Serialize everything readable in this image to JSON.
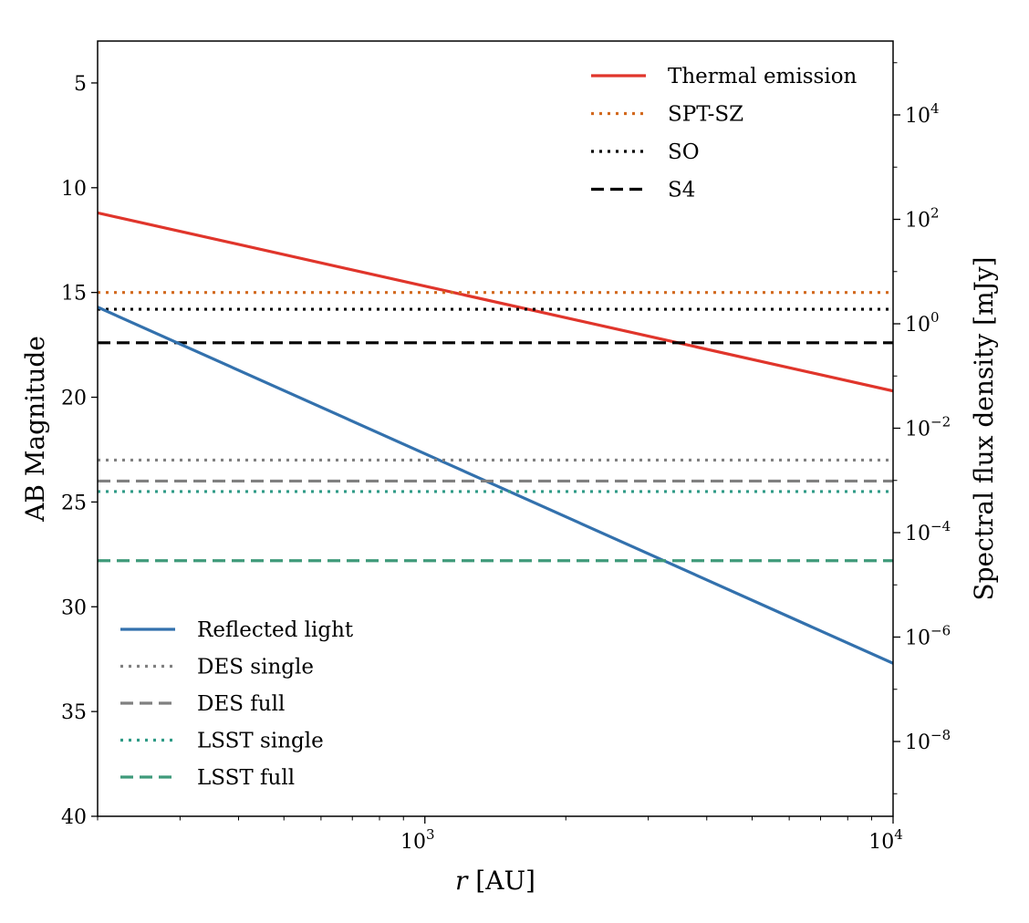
{
  "chart_data": {
    "type": "line",
    "xlabel": "r [AU]",
    "xlabel_var": "r",
    "xlabel_unit": "[AU]",
    "ylabel": "AB Magnitude",
    "y2label": "Spectral flux density [mJy]",
    "xscale": "log",
    "xlim": [
      200,
      10000
    ],
    "ylim": [
      3,
      40
    ],
    "y_inverted": true,
    "y2scale": "log",
    "y2_ticks": [
      {
        "value": 10000.0,
        "base": "10",
        "exp": "4"
      },
      {
        "value": 100.0,
        "base": "10",
        "exp": "2"
      },
      {
        "value": 1.0,
        "base": "10",
        "exp": "0"
      },
      {
        "value": 0.01,
        "base": "10",
        "exp": "−2"
      },
      {
        "value": 0.0001,
        "base": "10",
        "exp": "−4"
      },
      {
        "value": 1e-06,
        "base": "10",
        "exp": "−6"
      },
      {
        "value": 1e-08,
        "base": "10",
        "exp": "−8"
      }
    ],
    "y_ticks": [
      5,
      10,
      15,
      20,
      25,
      30,
      35,
      40
    ],
    "x_major_ticks": [
      {
        "value": 1000,
        "base": "10",
        "exp": "3"
      },
      {
        "value": 10000,
        "base": "10",
        "exp": "4"
      }
    ],
    "series": [
      {
        "name": "Thermal emission",
        "kind": "line",
        "x": [
          200,
          10000
        ],
        "y": [
          11.2,
          19.7
        ],
        "color": "#e0352b",
        "dash": "solid",
        "legend": "top-right"
      },
      {
        "name": "SPT-SZ",
        "kind": "hline",
        "y": 15.0,
        "color": "#d2691e",
        "dash": "dotted",
        "legend": "top-right"
      },
      {
        "name": "SO",
        "kind": "hline",
        "y": 15.8,
        "color": "#000000",
        "dash": "dotted",
        "legend": "top-right"
      },
      {
        "name": "S4",
        "kind": "hline",
        "y": 17.4,
        "color": "#000000",
        "dash": "dashed",
        "legend": "top-right"
      },
      {
        "name": "Reflected light",
        "kind": "line",
        "x": [
          200,
          10000
        ],
        "y": [
          15.7,
          32.7
        ],
        "color": "#3371ad",
        "dash": "solid",
        "legend": "bottom-left"
      },
      {
        "name": "DES single",
        "kind": "hline",
        "y": 23.0,
        "color": "#808080",
        "dash": "dotted",
        "legend": "bottom-left"
      },
      {
        "name": "DES full",
        "kind": "hline",
        "y": 24.0,
        "color": "#808080",
        "dash": "dashed",
        "legend": "bottom-left"
      },
      {
        "name": "LSST single",
        "kind": "hline",
        "y": 24.5,
        "color": "#2e9a86",
        "dash": "dotted",
        "legend": "bottom-left"
      },
      {
        "name": "LSST full",
        "kind": "hline",
        "y": 27.8,
        "color": "#3f9a7a",
        "dash": "dashed",
        "legend": "bottom-left"
      }
    ],
    "legend_top_right": [
      "Thermal emission",
      "SPT-SZ",
      "SO",
      "S4"
    ],
    "legend_bottom_left": [
      "Reflected light",
      "DES single",
      "DES full",
      "LSST single",
      "LSST full"
    ],
    "grid": false
  }
}
